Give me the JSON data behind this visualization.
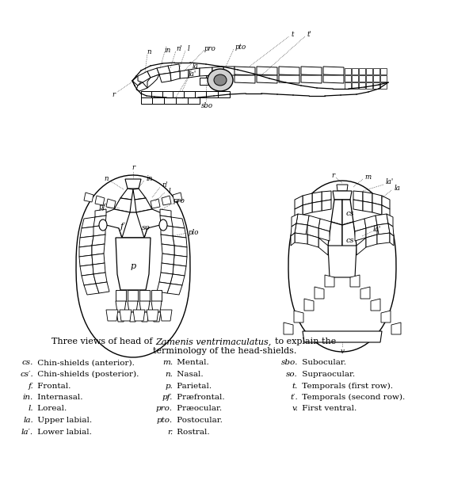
{
  "background_color": "#ffffff",
  "fig_width": 5.68,
  "fig_height": 6.26,
  "caption_line1_normal": "Three views of head of ",
  "caption_line1_italic": "Zamenis ventrimaculatus,",
  "caption_line1_suffix": "  to explain the",
  "caption_line2": "terminology of the head-shields.",
  "legend_columns": [
    [
      [
        "cs.",
        "Chin-shields (anterior)."
      ],
      [
        "cs′.",
        "Chin-shields (posterior)."
      ],
      [
        "f.",
        "Frontal."
      ],
      [
        "in.",
        "Internasal."
      ],
      [
        "l.",
        "Loreal."
      ],
      [
        "la.",
        "Upper labial."
      ],
      [
        "la′.",
        "Lower labial."
      ]
    ],
    [
      [
        "m.",
        "Mental."
      ],
      [
        "n.",
        "Nasal."
      ],
      [
        "p.",
        "Parietal."
      ],
      [
        "pf.",
        "Præfrontal."
      ],
      [
        "pro.",
        "Præocular."
      ],
      [
        "pto.",
        "Postocular."
      ],
      [
        "r.",
        "Rostral."
      ]
    ],
    [
      [
        "sbo.",
        "Subocular."
      ],
      [
        "so.",
        "Supraocular."
      ],
      [
        "t.",
        "Temporals (first row)."
      ],
      [
        "t′.",
        "Temporals (second row)."
      ],
      [
        "v.",
        "First ventral."
      ]
    ]
  ]
}
